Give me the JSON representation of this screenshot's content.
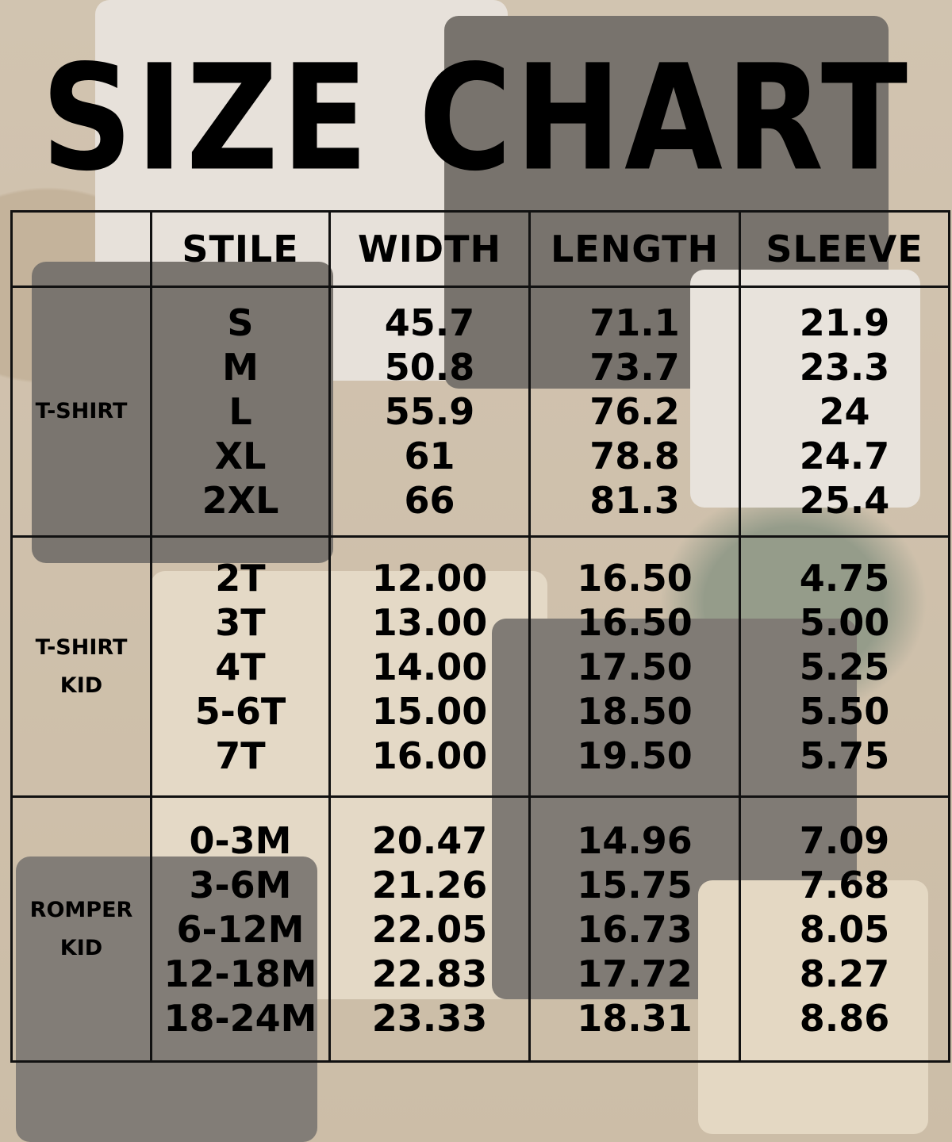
{
  "title": "SIZE CHART",
  "headers": [
    "",
    "STILE",
    "WIDTH",
    "LENGTH",
    "SLEEVE"
  ],
  "groups": [
    {
      "label": [
        "T-SHIRT"
      ],
      "stile": [
        "S",
        "M",
        "L",
        "XL",
        "2XL"
      ],
      "width": [
        "45.7",
        "50.8",
        "55.9",
        "61",
        "66"
      ],
      "length": [
        "71.1",
        "73.7",
        "76.2",
        "78.8",
        "81.3"
      ],
      "sleeve": [
        "21.9",
        "23.3",
        "24",
        "24.7",
        "25.4"
      ]
    },
    {
      "label": [
        "T-SHIRT",
        "KID"
      ],
      "stile": [
        "2T",
        "3T",
        "4T",
        "5-6T",
        "7T"
      ],
      "width": [
        "12.00",
        "13.00",
        "14.00",
        "15.00",
        "16.00"
      ],
      "length": [
        "16.50",
        "16.50",
        "17.50",
        "18.50",
        "19.50"
      ],
      "sleeve": [
        "4.75",
        "5.00",
        "5.25",
        "5.50",
        "5.75"
      ]
    },
    {
      "label": [
        "ROMPER",
        "KID"
      ],
      "stile": [
        "0-3M",
        "3-6M",
        "6-12M",
        "12-18M",
        "18-24M"
      ],
      "width": [
        "20.47",
        "21.26",
        "22.05",
        "22.83",
        "23.33"
      ],
      "length": [
        "14.96",
        "15.75",
        "16.73",
        "17.72",
        "18.31"
      ],
      "sleeve": [
        "7.09",
        "7.68",
        "8.05",
        "8.27",
        "8.86"
      ]
    }
  ]
}
